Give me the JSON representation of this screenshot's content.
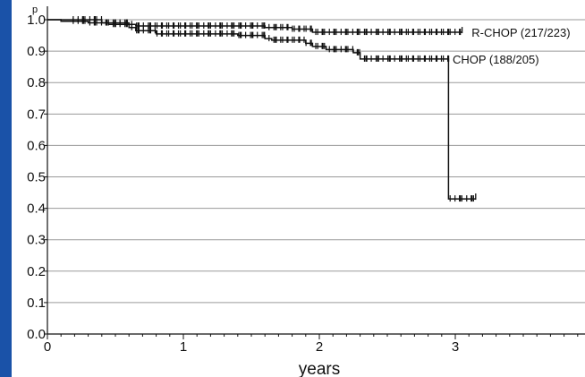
{
  "chart_data": {
    "type": "line",
    "subtype": "kaplan-meier",
    "title": "",
    "xlabel": "years",
    "ylabel": "p",
    "xlim": [
      0,
      4
    ],
    "ylim": [
      0,
      1.02
    ],
    "x_ticks": [
      "0",
      "1",
      "2",
      "3"
    ],
    "y_ticks": [
      "0.0",
      "0.1",
      "0.2",
      "0.3",
      "0.4",
      "0.5",
      "0.6",
      "0.7",
      "0.8",
      "0.9",
      "1.0"
    ],
    "grid": true,
    "legend_position": "inline-right",
    "colors": {
      "line": "#111111",
      "grid": "#9a9a9a",
      "left_border": "#1a52a8"
    },
    "series": [
      {
        "name": "R-CHOP (217/223)",
        "steps": [
          [
            0.0,
            1.0
          ],
          [
            0.1,
            0.995
          ],
          [
            0.3,
            0.99
          ],
          [
            0.45,
            0.985
          ],
          [
            0.65,
            0.98
          ],
          [
            1.6,
            0.975
          ],
          [
            1.8,
            0.97
          ],
          [
            1.95,
            0.96
          ]
        ],
        "end_x": 3.05,
        "censor_range": [
          0.2,
          3.05
        ]
      },
      {
        "name": "CHOP (188/205)",
        "steps": [
          [
            0.0,
            1.0
          ],
          [
            0.4,
            0.99
          ],
          [
            0.6,
            0.975
          ],
          [
            0.65,
            0.965
          ],
          [
            0.8,
            0.955
          ],
          [
            1.4,
            0.95
          ],
          [
            1.6,
            0.94
          ],
          [
            1.65,
            0.935
          ],
          [
            1.9,
            0.925
          ],
          [
            1.95,
            0.915
          ],
          [
            2.05,
            0.905
          ],
          [
            2.25,
            0.895
          ],
          [
            2.3,
            0.875
          ],
          [
            2.95,
            0.43
          ]
        ],
        "end_x": 3.15,
        "censor_range": [
          0.2,
          3.15
        ]
      }
    ]
  }
}
